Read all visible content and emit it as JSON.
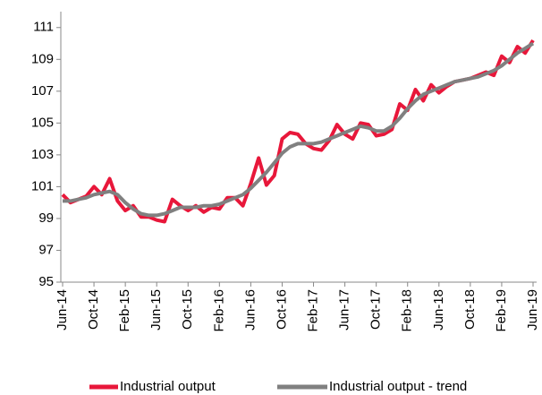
{
  "chart_data": {
    "type": "line",
    "categories": [
      "Jun-14",
      null,
      null,
      null,
      "Oct-14",
      null,
      null,
      null,
      "Feb-15",
      null,
      null,
      null,
      "Jun-15",
      null,
      null,
      null,
      "Oct-15",
      null,
      null,
      null,
      "Feb-16",
      null,
      null,
      null,
      "Jun-16",
      null,
      null,
      null,
      "Oct-16",
      null,
      null,
      null,
      "Feb-17",
      null,
      null,
      null,
      "Jun-17",
      null,
      null,
      null,
      "Oct-17",
      null,
      null,
      null,
      "Feb-18",
      null,
      null,
      null,
      "Jun-18",
      null,
      null,
      null,
      "Oct-18",
      null,
      null,
      null,
      "Feb-19",
      null,
      null,
      null,
      "Jun-19"
    ],
    "series": [
      {
        "name": "Industrial output",
        "color": "#e8173a",
        "values": [
          100.5,
          100.0,
          100.2,
          100.4,
          101.0,
          100.5,
          101.5,
          100.1,
          99.5,
          99.8,
          99.1,
          99.1,
          98.9,
          98.8,
          100.2,
          99.8,
          99.5,
          99.8,
          99.4,
          99.7,
          99.6,
          100.3,
          100.3,
          99.8,
          101.2,
          102.8,
          101.1,
          101.7,
          104.0,
          104.4,
          104.3,
          103.7,
          103.4,
          103.3,
          103.9,
          104.9,
          104.3,
          104.0,
          105.0,
          104.9,
          104.2,
          104.3,
          104.6,
          106.2,
          105.8,
          107.1,
          106.4,
          107.4,
          106.9,
          107.3,
          107.6,
          107.7,
          107.8,
          108.0,
          108.2,
          108.0,
          109.2,
          108.8,
          109.8,
          109.4,
          110.2
        ]
      },
      {
        "name": "Industrial output - trend",
        "color": "#808080",
        "values": [
          100.1,
          100.1,
          100.2,
          100.3,
          100.5,
          100.6,
          100.7,
          100.5,
          100.0,
          99.6,
          99.3,
          99.2,
          99.2,
          99.3,
          99.5,
          99.7,
          99.7,
          99.7,
          99.8,
          99.8,
          99.9,
          100.1,
          100.3,
          100.5,
          100.9,
          101.4,
          101.9,
          102.5,
          103.1,
          103.5,
          103.7,
          103.7,
          103.7,
          103.8,
          104.0,
          104.2,
          104.4,
          104.6,
          104.8,
          104.7,
          104.5,
          104.5,
          104.8,
          105.3,
          105.9,
          106.4,
          106.8,
          107.0,
          107.2,
          107.4,
          107.6,
          107.7,
          107.8,
          107.9,
          108.1,
          108.3,
          108.6,
          109.0,
          109.4,
          109.7,
          110.0
        ]
      }
    ],
    "ylim": [
      95,
      112
    ],
    "yticks": [
      95,
      97,
      99,
      101,
      103,
      105,
      107,
      109,
      111
    ],
    "legend": "bottom"
  }
}
